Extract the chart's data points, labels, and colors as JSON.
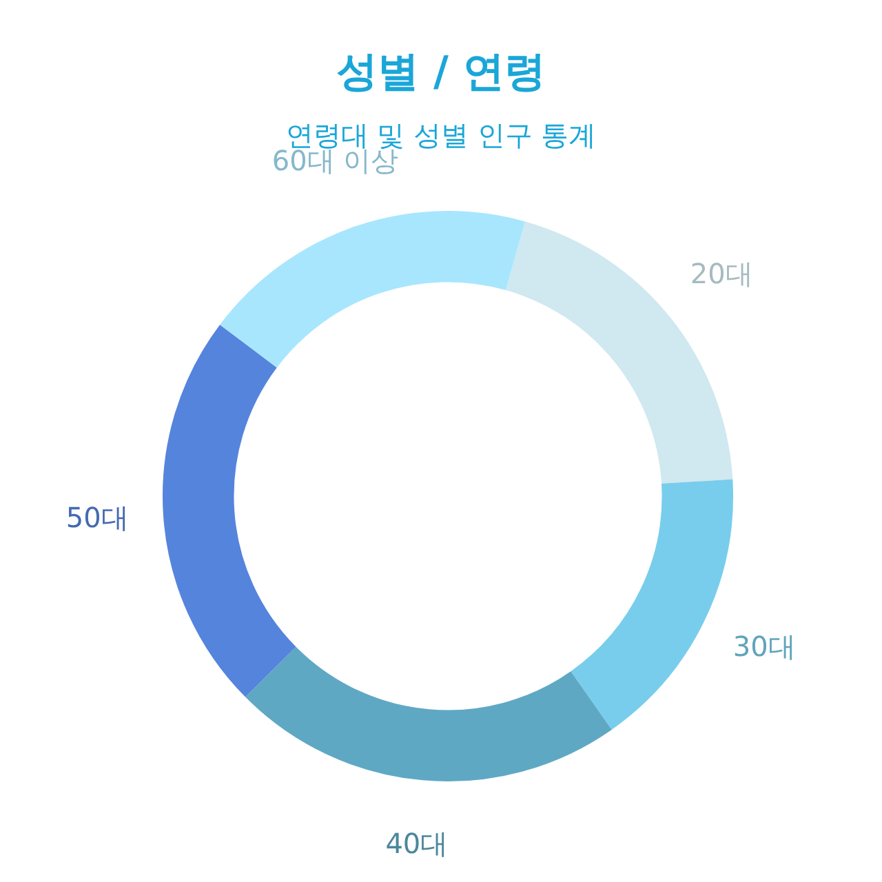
{
  "chart_data": {
    "type": "donut",
    "title": "성별 / 연령",
    "subtitle": "연령대 및 성별 인구 통계",
    "categories": [
      "20대",
      "30대",
      "40대",
      "50대",
      "60대 이상"
    ],
    "values": [
      19.7,
      16.2,
      22.3,
      22.7,
      19.1
    ],
    "colors": [
      "#d0e8f0",
      "#78cdec",
      "#5fa8c4",
      "#5584dd",
      "#a8e6fe"
    ],
    "legend": false
  }
}
